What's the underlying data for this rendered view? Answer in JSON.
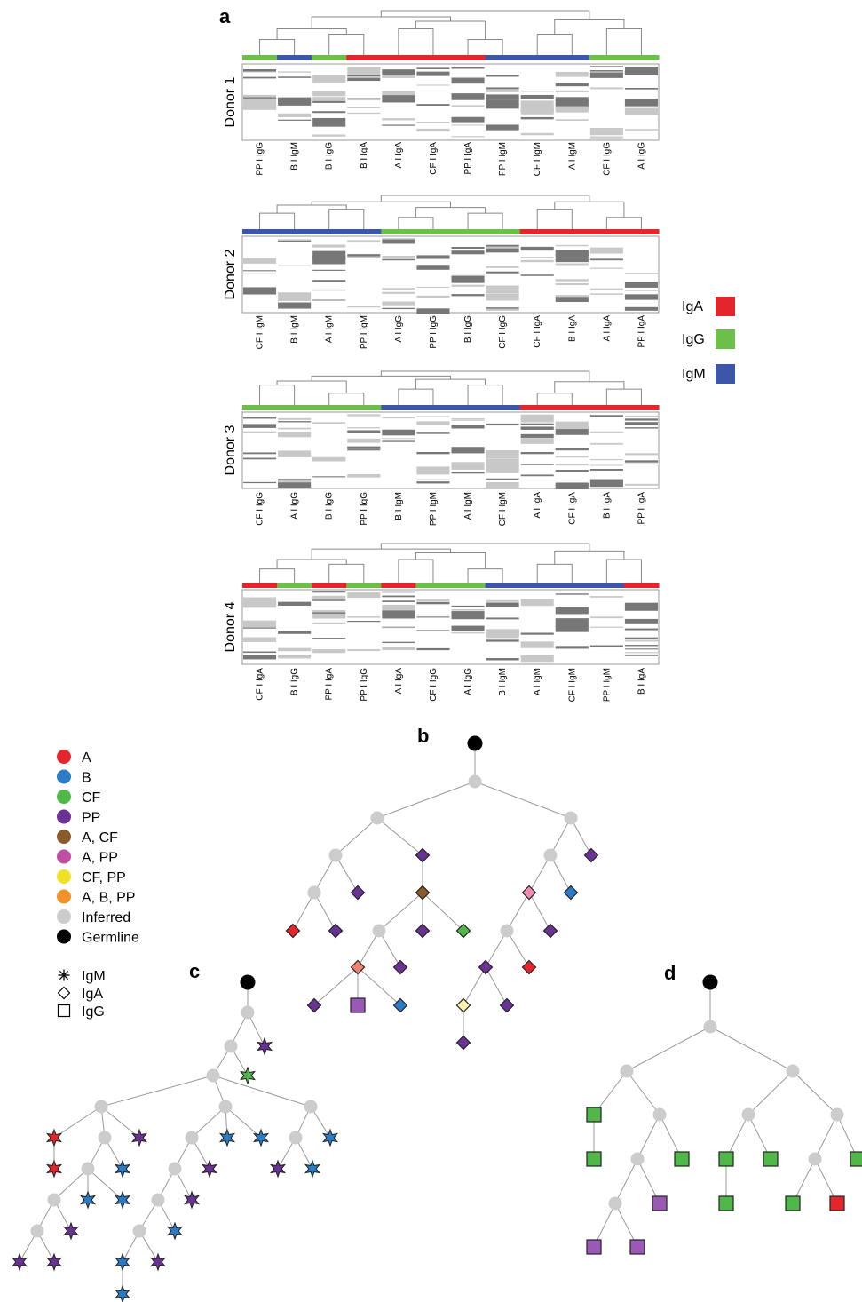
{
  "panel_letters": {
    "a": "a",
    "b": "b",
    "c": "c",
    "d": "d"
  },
  "isotype_legend": [
    {
      "label": "IgA",
      "color": "#e2262b"
    },
    {
      "label": "IgG",
      "color": "#6cc04a"
    },
    {
      "label": "IgM",
      "color": "#3e56a8"
    }
  ],
  "donors": [
    {
      "label": "Donor 1",
      "columns": [
        "PP I IgG",
        "B I IgM",
        "B I IgG",
        "B I IgA",
        "A I IgA",
        "CF I IgA",
        "PP I IgA",
        "PP I IgM",
        "CF I IgM",
        "A I IgM",
        "CF I IgG",
        "A I IgG"
      ]
    },
    {
      "label": "Donor 2",
      "columns": [
        "CF I IgM",
        "B I IgM",
        "A I IgM",
        "PP I IgM",
        "A I IgG",
        "PP I IgG",
        "B I IgG",
        "CF I IgG",
        "CF I IgA",
        "B I IgA",
        "A I IgA",
        "PP I IgA"
      ]
    },
    {
      "label": "Donor 3",
      "columns": [
        "CF I IgG",
        "A I IgG",
        "B I IgG",
        "PP I IgG",
        "B I IgM",
        "PP I IgM",
        "A I IgM",
        "CF I IgM",
        "A I IgA",
        "CF I IgA",
        "B I IgA",
        "PP I IgA"
      ]
    },
    {
      "label": "Donor 4",
      "columns": [
        "CF I IgA",
        "B I IgG",
        "PP I IgA",
        "PP I IgG",
        "A I IgA",
        "CF I IgG",
        "A I IgG",
        "B I IgM",
        "A I IgM",
        "CF I IgM",
        "PP I IgM",
        "B I IgA"
      ]
    }
  ],
  "tree_legend": {
    "colors": [
      {
        "label": "A",
        "color": "#e2262b"
      },
      {
        "label": "B",
        "color": "#2b7cc4"
      },
      {
        "label": "CF",
        "color": "#4fb848"
      },
      {
        "label": "PP",
        "color": "#6a3294"
      },
      {
        "label": "A, CF",
        "color": "#8b5a2b"
      },
      {
        "label": "A, PP",
        "color": "#c04fa4"
      },
      {
        "label": "CF, PP",
        "color": "#f1e126"
      },
      {
        "label": "A, B, PP",
        "color": "#f0922a"
      },
      {
        "label": "Inferred",
        "color": "#cccccc"
      },
      {
        "label": "Germline",
        "color": "#000000"
      }
    ],
    "shapes": [
      {
        "label": "IgM",
        "shape": "asterisk-icon"
      },
      {
        "label": "IgA",
        "shape": "diamond-icon"
      },
      {
        "label": "IgG",
        "shape": "square-icon"
      }
    ]
  }
}
